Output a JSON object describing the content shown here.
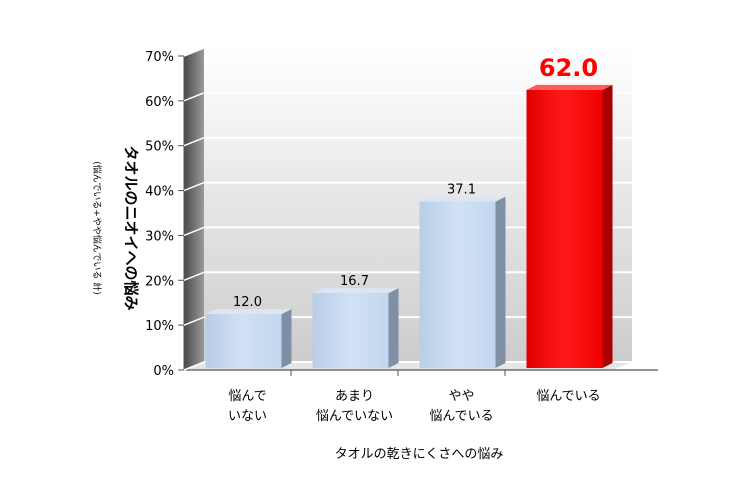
{
  "chart_data": {
    "type": "bar",
    "categories": [
      [
        "悩んで",
        "いない"
      ],
      [
        "あまり",
        "悩んでいない"
      ],
      [
        "やや",
        "悩んでいる"
      ],
      [
        "悩んでいる"
      ]
    ],
    "values": [
      12.0,
      16.7,
      37.1,
      62.0
    ],
    "value_labels": [
      "12.0",
      "16.7",
      "37.1",
      "62.0"
    ],
    "highlight_index": 3,
    "ylim": [
      0,
      70
    ],
    "yticks": [
      "0%",
      "10%",
      "20%",
      "30%",
      "40%",
      "50%",
      "60%",
      "70%"
    ],
    "ylabel": "タオルのニオイへの悩み",
    "ylabel_sub": "(悩んでいる+やや悩んでいる 計)",
    "xlabel": "タオルの乾きにくさへの悩み",
    "grid": true,
    "colors": {
      "bar": "#c6d9f1",
      "bar_side": "#7f8fa6",
      "bar_top": "#dbe6f5",
      "highlight": "#ff0000",
      "highlight_side": "#a80000",
      "highlight_top": "#ff5a5a",
      "back_wall_top": "#ffffff",
      "back_wall_bottom": "#cfcfcf",
      "side_wall": "#7a7a7a",
      "floor": "#e8e8e8"
    }
  }
}
